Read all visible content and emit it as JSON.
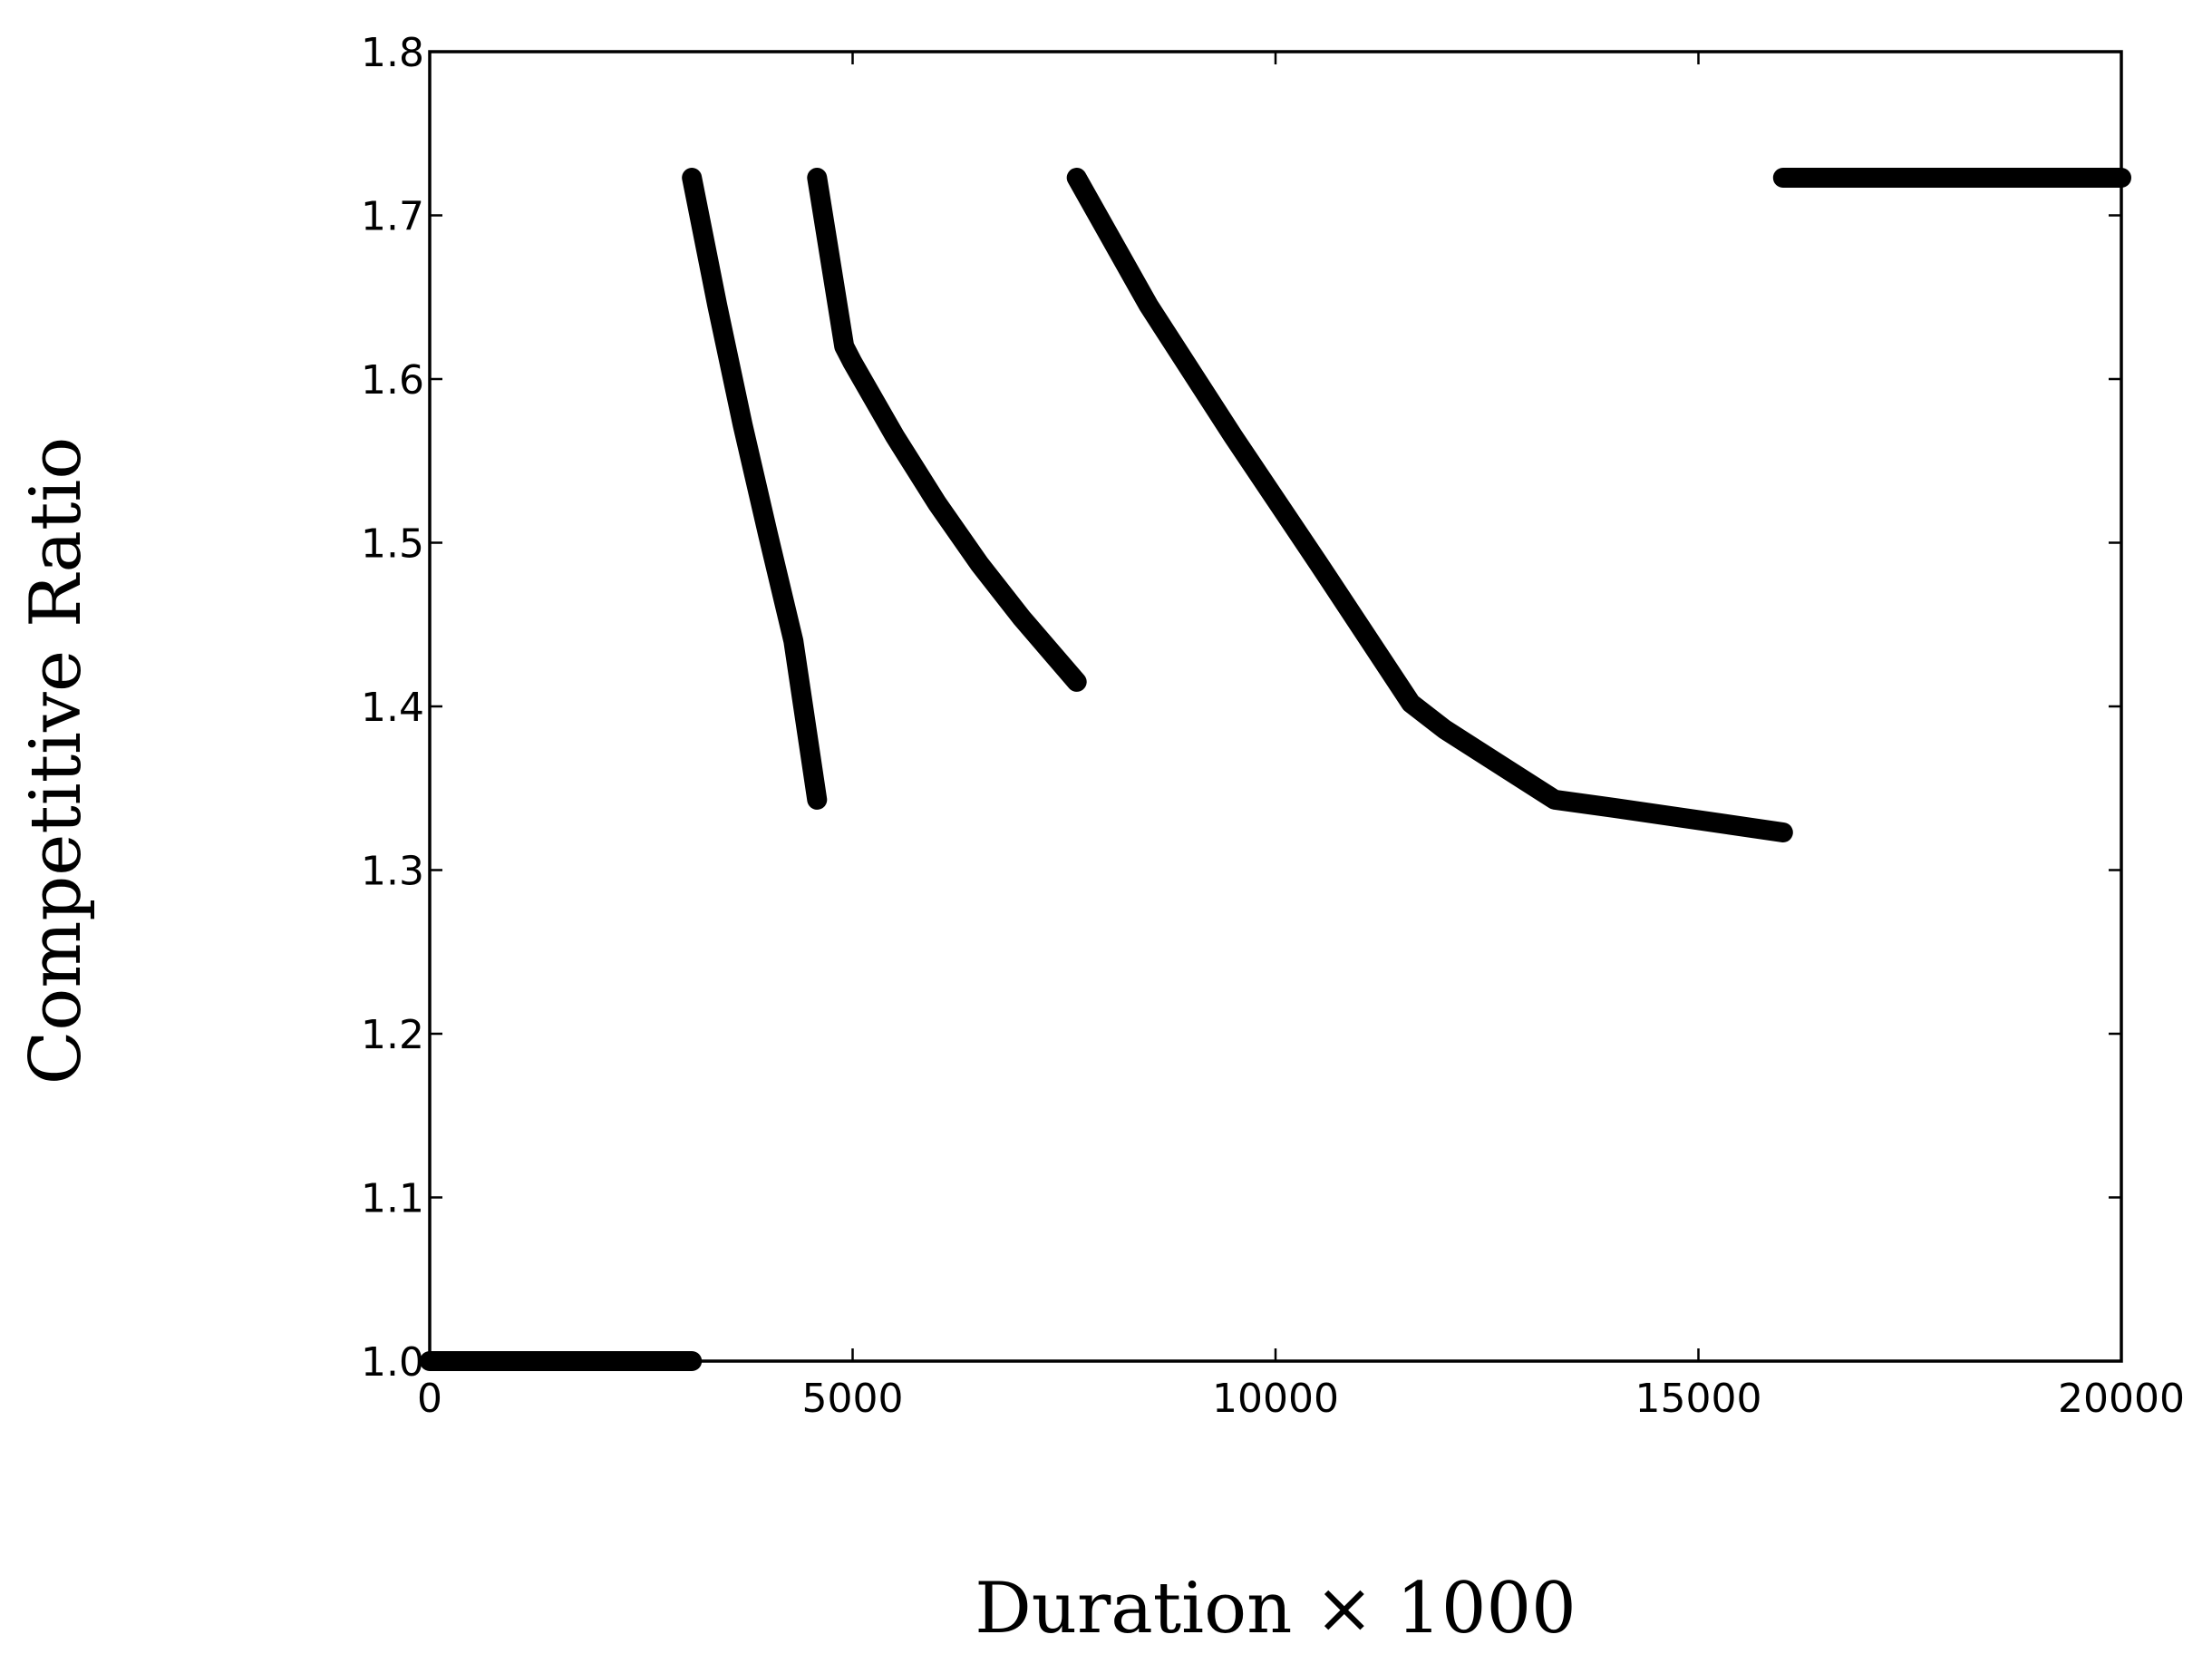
{
  "chart_data": {
    "type": "line",
    "title": "",
    "xlabel": "Duration × 1000",
    "ylabel": "Competitive Ratio",
    "xlim": [
      0,
      20000
    ],
    "ylim": [
      1.0,
      1.8
    ],
    "xticks": [
      0,
      5000,
      10000,
      15000,
      20000
    ],
    "xtick_labels": [
      "0",
      "5000",
      "10000",
      "15000",
      "20000"
    ],
    "yticks": [
      1.0,
      1.1,
      1.2,
      1.3,
      1.4,
      1.5,
      1.6,
      1.7,
      1.8
    ],
    "ytick_labels": [
      "1.0",
      "1.1",
      "1.2",
      "1.3",
      "1.4",
      "1.5",
      "1.6",
      "1.7",
      "1.8"
    ],
    "grid": false,
    "legend": "none",
    "line_color": "#000000",
    "series": [
      {
        "x": [
          0,
          3100
        ],
        "y": [
          1.0,
          1.0
        ]
      },
      {
        "x": [
          3100,
          3400,
          3700,
          4000,
          4300,
          4580
        ],
        "y": [
          1.723,
          1.645,
          1.572,
          1.505,
          1.44,
          1.343
        ]
      },
      {
        "x": [
          4580,
          4900,
          5000,
          5500,
          6000,
          6500,
          7000,
          7650
        ],
        "y": [
          1.723,
          1.62,
          1.61,
          1.565,
          1.524,
          1.487,
          1.454,
          1.415
        ]
      },
      {
        "x": [
          7650,
          8500,
          9500,
          10500,
          11600,
          12000,
          13300,
          14000,
          16000
        ],
        "y": [
          1.723,
          1.645,
          1.565,
          1.488,
          1.402,
          1.386,
          1.343,
          1.338,
          1.323
        ]
      },
      {
        "x": [
          16000,
          20000
        ],
        "y": [
          1.723,
          1.723
        ]
      }
    ]
  }
}
